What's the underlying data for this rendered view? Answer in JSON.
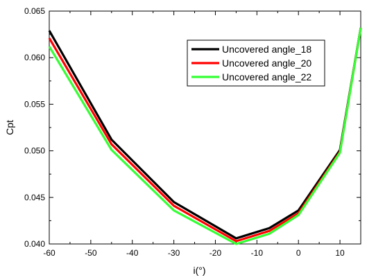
{
  "chart_data": {
    "type": "line",
    "title": "",
    "xlabel": "i(°)",
    "ylabel": "Cpt",
    "xlim": [
      -60,
      15
    ],
    "ylim": [
      0.04,
      0.065
    ],
    "xticks": [
      -60,
      -50,
      -40,
      -30,
      -20,
      -10,
      0,
      10
    ],
    "xtick_labels": [
      "-60",
      "-50",
      "-40",
      "-30",
      "-20",
      "-10",
      "0",
      "10"
    ],
    "yticks": [
      0.04,
      0.045,
      0.05,
      0.055,
      0.06,
      0.065
    ],
    "ytick_labels": [
      "0.040",
      "0.045",
      "0.050",
      "0.055",
      "0.060",
      "0.065"
    ],
    "x_minor_step": 5,
    "y_minor_step": 0.0025,
    "grid": false,
    "legend_position": "top-right",
    "series": [
      {
        "name": "Uncovered angle_18",
        "color": "#000000",
        "x": [
          -60,
          -45,
          -30,
          -15,
          -7,
          0,
          10,
          15
        ],
        "y": [
          0.0629,
          0.0512,
          0.0445,
          0.0406,
          0.0417,
          0.0436,
          0.0501,
          0.0632
        ]
      },
      {
        "name": "Uncovered angle_20",
        "color": "#ff0000",
        "x": [
          -60,
          -45,
          -30,
          -15,
          -7,
          0,
          10,
          15
        ],
        "y": [
          0.0621,
          0.0507,
          0.0441,
          0.0403,
          0.0414,
          0.0433,
          0.0499,
          0.0632
        ]
      },
      {
        "name": "Uncovered angle_22",
        "color": "#33ff33",
        "x": [
          -60,
          -45,
          -30,
          -15,
          -7,
          0,
          10,
          15
        ],
        "y": [
          0.0612,
          0.0501,
          0.0436,
          0.04,
          0.0411,
          0.0431,
          0.0498,
          0.0632
        ]
      }
    ]
  }
}
